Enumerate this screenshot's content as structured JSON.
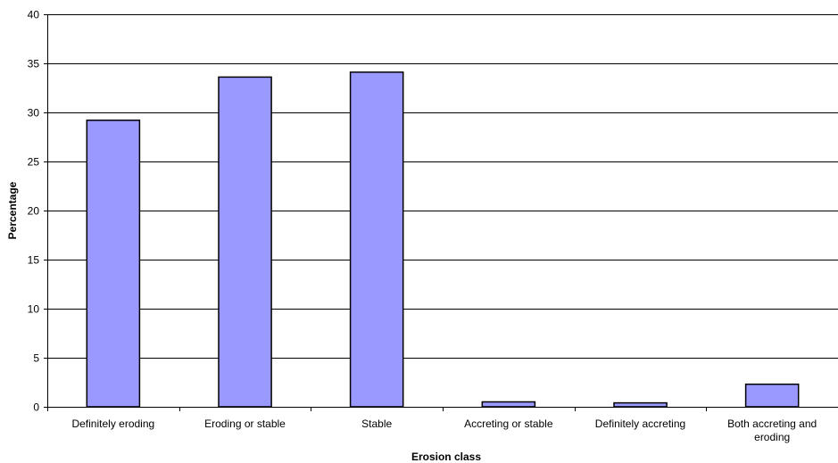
{
  "chart_data": {
    "type": "bar",
    "title": "",
    "xlabel": "Erosion class",
    "ylabel": "Percentage",
    "ylim": [
      0,
      40
    ],
    "yticks": [
      0,
      5,
      10,
      15,
      20,
      25,
      30,
      35,
      40
    ],
    "categories": [
      "Definitely eroding",
      "Eroding or stable",
      "Stable",
      "Accreting or stable",
      "Definitely accreting",
      "Both accreting and eroding"
    ],
    "category_lines": [
      [
        "Definitely eroding"
      ],
      [
        "Eroding or stable"
      ],
      [
        "Stable"
      ],
      [
        "Accreting or stable"
      ],
      [
        "Definitely accreting"
      ],
      [
        "Both accreting and",
        "eroding"
      ]
    ],
    "values": [
      29.2,
      33.6,
      34.1,
      0.5,
      0.4,
      2.3
    ],
    "grid": true,
    "legend": "none",
    "bar_color": "#9999ff",
    "bar_edge_color": "#000000"
  }
}
